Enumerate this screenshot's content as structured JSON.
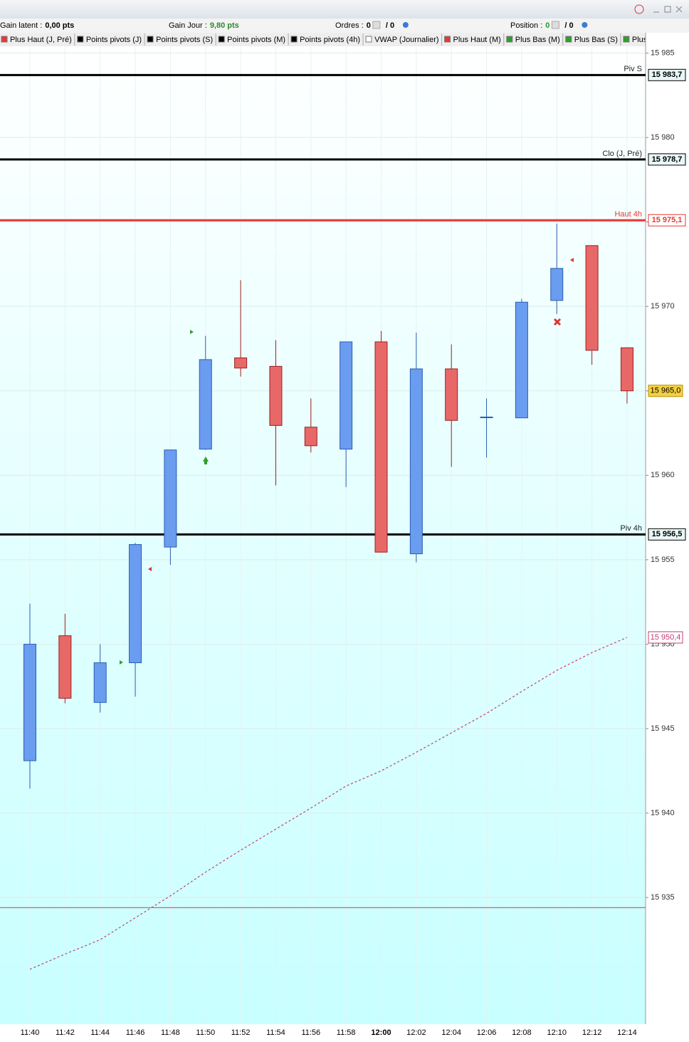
{
  "toolbar": {
    "items": [
      {
        "label": "Gain latent :",
        "value": "0,00 pts"
      },
      {
        "label": "Gain Jour :",
        "value": "9,80 pts"
      },
      {
        "label": "Ordres :",
        "value": "0",
        "extra": "/ 0"
      },
      {
        "label": "Position :",
        "value": "0",
        "extra": "/ 0"
      }
    ]
  },
  "indicators": [
    {
      "name": "Plus Haut (J, Pré)",
      "color": "#e53935"
    },
    {
      "name": "Points pivots (J)",
      "color": "#000000"
    },
    {
      "name": "Points pivots (S)",
      "color": "#000000"
    },
    {
      "name": "Points pivots (M)",
      "color": "#000000"
    },
    {
      "name": "Points pivots (4h)",
      "color": "#000000"
    },
    {
      "name": "VWAP (Journalier)",
      "color": "#ffffff"
    },
    {
      "name": "Plus Haut (M)",
      "color": "#e53935"
    },
    {
      "name": "Plus Bas (M)",
      "color": "#2e9e2e"
    },
    {
      "name": "Plus Bas (S)",
      "color": "#2e9e2e"
    },
    {
      "name": "Plus Ba",
      "color": "#2e9e2e"
    }
  ],
  "chart_data": {
    "type": "candlestick",
    "categories": [
      "11:40",
      "11:42",
      "11:44",
      "11:46",
      "11:48",
      "11:50",
      "11:52",
      "11:54",
      "11:56",
      "11:58",
      "12:00",
      "12:02",
      "12:04",
      "12:06",
      "12:08",
      "12:10",
      "12:12",
      "12:14"
    ],
    "open": [
      15943.1,
      15950.5,
      15946.55,
      15948.9,
      15955.75,
      15961.55,
      15966.95,
      15966.45,
      15962.85,
      15961.55,
      15967.9,
      15955.35,
      15966.3,
      15963.45,
      15963.4,
      15970.35,
      15973.6,
      15967.55
    ],
    "high": [
      15952.4,
      15951.8,
      15950.0,
      15956.0,
      15961.5,
      15968.25,
      15971.55,
      15968.0,
      15964.55,
      15967.9,
      15968.55,
      15968.45,
      15967.75,
      15964.55,
      15970.45,
      15974.9,
      15973.6,
      15967.55
    ],
    "low": [
      15941.45,
      15946.5,
      15945.95,
      15946.9,
      15954.7,
      15961.5,
      15965.85,
      15959.4,
      15961.35,
      15959.3,
      15955.45,
      15954.85,
      15960.5,
      15961.05,
      15963.4,
      15969.55,
      15966.55,
      15964.25
    ],
    "close": [
      15950.0,
      15946.8,
      15948.9,
      15955.9,
      15961.5,
      15966.85,
      15966.35,
      15962.95,
      15961.75,
      15967.9,
      15955.45,
      15966.3,
      15963.25,
      15963.45,
      15970.25,
      15972.25,
      15967.4,
      15965.0
    ],
    "up_color": "#6a9cf0",
    "down_color": "#e86868",
    "vwap": {
      "values": [
        15930.75,
        15931.65,
        15932.5,
        15933.8,
        15935.1,
        15936.5,
        15937.8,
        15939.05,
        15940.3,
        15941.6,
        15942.5,
        15943.6,
        15944.75,
        15945.9,
        15947.2,
        15948.45,
        15949.5,
        15950.4
      ],
      "color": "#c0407a"
    },
    "vwap_last": {
      "value": 15950.4,
      "label": "15 950,4"
    },
    "last_price": {
      "value": 15965.0,
      "label": "15 965,0"
    },
    "levels": [
      {
        "name": "Piv S",
        "value": 15983.7,
        "label": "15 983,7",
        "color": "#000000"
      },
      {
        "name": "Clo (J, Pré)",
        "value": 15978.7,
        "label": "15 978,7",
        "color": "#000000"
      },
      {
        "name": "Haut 4h",
        "value": 15975.1,
        "label": "15 975,1",
        "color": "#e53935"
      },
      {
        "name": "Piv 4h",
        "value": 15956.5,
        "label": "15 956,5",
        "color": "#000000"
      },
      {
        "value": 15934.4,
        "color": "#e06060"
      }
    ],
    "ylim": [
      15927.5,
      15985.4
    ],
    "yticks": [
      {
        "value": 15985,
        "label": "15 985"
      },
      {
        "value": 15980,
        "label": "15 980"
      },
      {
        "value": 15975,
        "label": "15 975"
      },
      {
        "value": 15970,
        "label": "15 970"
      },
      {
        "value": 15965,
        "label": "15 965"
      },
      {
        "value": 15960,
        "label": "15 960"
      },
      {
        "value": 15955,
        "label": "15 955"
      },
      {
        "value": 15950,
        "label": "15 950"
      },
      {
        "value": 15945,
        "label": "15 945"
      },
      {
        "value": 15940,
        "label": "15 940"
      },
      {
        "value": 15935,
        "label": "15 935"
      }
    ],
    "grid": true
  }
}
